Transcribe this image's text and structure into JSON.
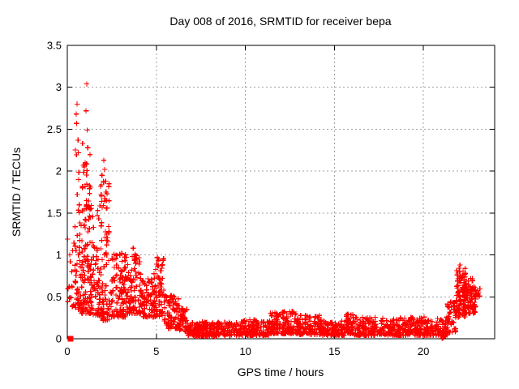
{
  "chart_data": {
    "type": "scatter",
    "title": "Day 008 of 2016, SRMTID for receiver bepa",
    "xlabel": "GPS time / hours",
    "ylabel": "SRMTID / TECUs",
    "xlim": [
      0,
      24
    ],
    "ylim": [
      0,
      3.5
    ],
    "xticks": [
      {
        "label": "0",
        "value": 0
      },
      {
        "label": "5",
        "value": 5
      },
      {
        "label": "10",
        "value": 10
      },
      {
        "label": "15",
        "value": 15
      },
      {
        "label": "20",
        "value": 20
      }
    ],
    "yticks": [
      {
        "label": "0",
        "value": 0
      },
      {
        "label": "0.5",
        "value": 0.5
      },
      {
        "label": "1",
        "value": 1
      },
      {
        "label": "1.5",
        "value": 1.5
      },
      {
        "label": "2",
        "value": 2
      },
      {
        "label": "2.5",
        "value": 2.5
      },
      {
        "label": "3",
        "value": 3
      },
      {
        "label": "3.5",
        "value": 3.5
      }
    ],
    "grid": true,
    "legend_position": "none",
    "marker": "plus",
    "marker_color": "#ff0000",
    "grid_color": "#a0a0a0",
    "frame_color": "#000000",
    "seed": 20160108,
    "notable_points": [
      [
        0.02,
        1.19
      ],
      [
        0.1,
        0.62
      ],
      [
        0.15,
        0.49
      ],
      [
        0.25,
        0.8
      ],
      [
        0.3,
        1.05
      ],
      [
        0.5,
        2.68
      ],
      [
        0.52,
        2.57
      ],
      [
        0.55,
        2.8
      ],
      [
        0.6,
        2.37
      ],
      [
        0.62,
        2.22
      ],
      [
        0.85,
        2.33
      ],
      [
        0.95,
        2.05
      ],
      [
        1.0,
        2.1
      ],
      [
        1.05,
        2.72
      ],
      [
        1.09,
        3.04
      ],
      [
        1.12,
        2.49
      ],
      [
        1.15,
        2.28
      ],
      [
        1.9,
        1.72
      ],
      [
        1.95,
        1.95
      ],
      [
        2.05,
        2.13
      ],
      [
        2.1,
        2.02
      ],
      [
        2.15,
        1.88
      ],
      [
        2.2,
        1.65
      ],
      [
        3.7,
        1.08
      ],
      [
        3.75,
        0.98
      ],
      [
        5.05,
        0.97
      ],
      [
        5.1,
        0.93
      ],
      [
        21.05,
        0.005
      ],
      [
        21.12,
        0.01
      ],
      [
        22.0,
        0.84
      ],
      [
        22.05,
        0.88
      ]
    ],
    "square_marker_point": [
      0.18,
      0.0
    ],
    "density_bands": [
      [
        0.02,
        0.4,
        12,
        0.35,
        1.25,
        1.6
      ],
      [
        0.42,
        0.8,
        55,
        0.35,
        2.3,
        2.3
      ],
      [
        0.8,
        1.3,
        110,
        0.3,
        2.2,
        2.4
      ],
      [
        1.3,
        1.8,
        70,
        0.28,
        1.6,
        1.9
      ],
      [
        1.8,
        2.35,
        95,
        0.22,
        1.92,
        2.2
      ],
      [
        2.35,
        3.3,
        110,
        0.26,
        1.05,
        2.0
      ],
      [
        3.3,
        4.15,
        95,
        0.3,
        1.02,
        1.8
      ],
      [
        4.15,
        4.85,
        70,
        0.26,
        0.72,
        1.5
      ],
      [
        4.85,
        5.45,
        75,
        0.26,
        0.97,
        1.6
      ],
      [
        5.45,
        6.3,
        80,
        0.12,
        0.52,
        1.5
      ],
      [
        6.3,
        6.75,
        45,
        0.08,
        0.36,
        1.3
      ],
      [
        6.75,
        9.7,
        230,
        0.03,
        0.2,
        1.4
      ],
      [
        9.7,
        11.3,
        135,
        0.04,
        0.23,
        1.4
      ],
      [
        11.3,
        12.9,
        145,
        0.06,
        0.33,
        1.7
      ],
      [
        12.9,
        14.3,
        125,
        0.05,
        0.28,
        1.6
      ],
      [
        14.3,
        15.55,
        105,
        0.04,
        0.21,
        1.4
      ],
      [
        15.55,
        16.1,
        50,
        0.06,
        0.3,
        1.5
      ],
      [
        16.1,
        21.4,
        430,
        0.04,
        0.26,
        1.7
      ],
      [
        21.35,
        21.9,
        45,
        0.08,
        0.45,
        1.4
      ],
      [
        21.85,
        22.35,
        95,
        0.25,
        0.85,
        1.4
      ],
      [
        22.3,
        22.95,
        90,
        0.3,
        0.72,
        1.3
      ],
      [
        22.9,
        23.2,
        12,
        0.45,
        0.65,
        1.2
      ]
    ]
  }
}
